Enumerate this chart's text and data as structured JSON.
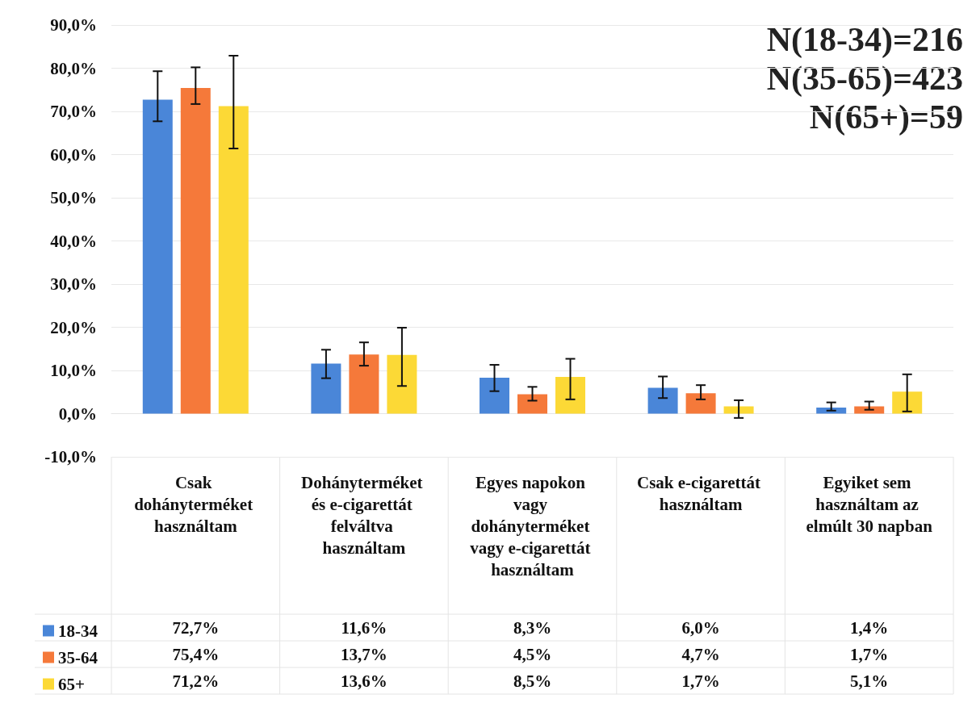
{
  "chart_data": {
    "type": "bar",
    "categories": [
      "Csak dohányterméket használtam",
      "Dohányterméket és e-cigarettát felváltva használtam",
      "Egyes napokon vagy dohányterméket vagy e-cigarettát használtam",
      "Csak e-cigarettát használtam",
      "Egyiket sem használtam az elmúlt 30 napban"
    ],
    "series": [
      {
        "name": "18-34",
        "color": "#4a86d8",
        "values": [
          72.7,
          11.6,
          8.3,
          6.0,
          1.4
        ],
        "value_labels": [
          "72,7%",
          "11,6%",
          "8,3%",
          "6,0%",
          "1,4%"
        ],
        "errors": [
          [
            67.7,
            79.3
          ],
          [
            8.2,
            14.8
          ],
          [
            5.2,
            11.3
          ],
          [
            3.6,
            8.6
          ],
          [
            0.7,
            2.6
          ]
        ]
      },
      {
        "name": "35-64",
        "color": "#f5793a",
        "values": [
          75.4,
          13.7,
          4.5,
          4.7,
          1.7
        ],
        "value_labels": [
          "75,4%",
          "13,7%",
          "4,5%",
          "4,7%",
          "1,7%"
        ],
        "errors": [
          [
            71.7,
            80.2
          ],
          [
            11.1,
            16.5
          ],
          [
            3.0,
            6.2
          ],
          [
            3.3,
            6.6
          ],
          [
            0.9,
            2.8
          ]
        ]
      },
      {
        "name": "65+",
        "color": "#fcd936",
        "values": [
          71.2,
          13.6,
          8.5,
          1.7,
          5.1
        ],
        "value_labels": [
          "71,2%",
          "13,6%",
          "8,5%",
          "1,7%",
          "5,1%"
        ],
        "errors": [
          [
            61.4,
            82.9
          ],
          [
            6.4,
            19.9
          ],
          [
            3.3,
            12.7
          ],
          [
            -1.0,
            3.1
          ],
          [
            0.5,
            9.1
          ]
        ]
      }
    ],
    "ylim": [
      -10,
      90
    ],
    "yticks": [
      {
        "value": -10,
        "label": "-10,0%"
      },
      {
        "value": 0,
        "label": "0,0%"
      },
      {
        "value": 10,
        "label": "10,0%"
      },
      {
        "value": 20,
        "label": "20,0%"
      },
      {
        "value": 30,
        "label": "30,0%"
      },
      {
        "value": 40,
        "label": "40,0%"
      },
      {
        "value": 50,
        "label": "50,0%"
      },
      {
        "value": 60,
        "label": "60,0%"
      },
      {
        "value": 70,
        "label": "70,0%"
      },
      {
        "value": 80,
        "label": "80,0%"
      },
      {
        "value": 90,
        "label": "90,0%"
      }
    ],
    "grid": "y",
    "legend": "bottom left",
    "annotations": [
      "N(18-34)=216",
      "N(35-65)=423",
      "N(65+)=59"
    ]
  }
}
